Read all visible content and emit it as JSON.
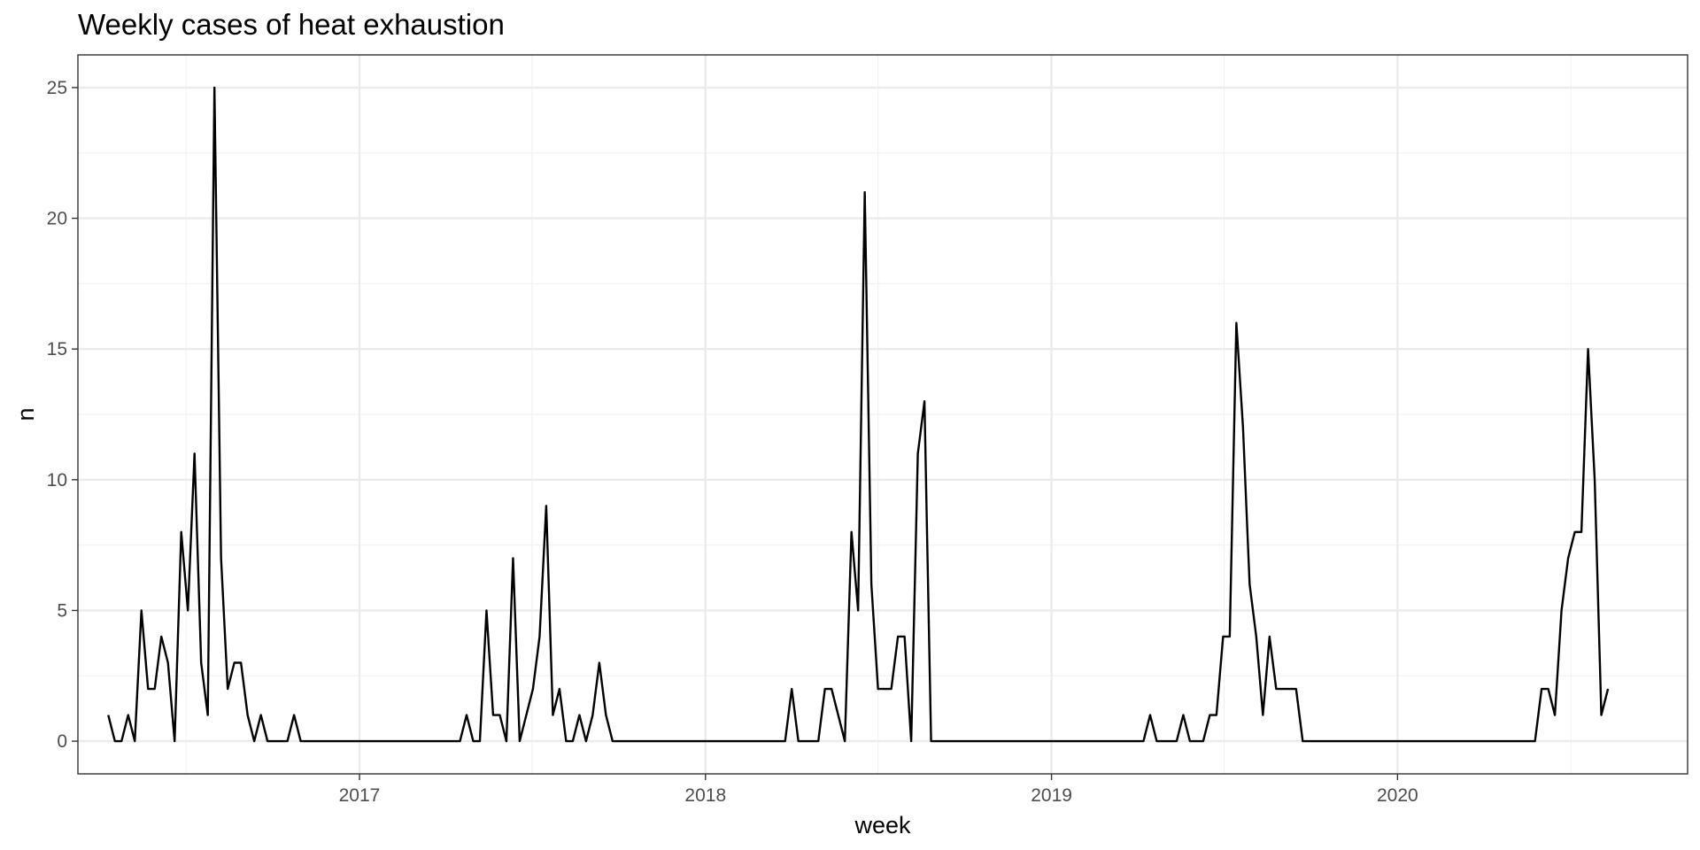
{
  "chart_data": {
    "type": "line",
    "title": "Weekly cases of heat exhaustion",
    "xlabel": "week",
    "ylabel": "n",
    "x_type": "date",
    "xlim": [
      "2016-03-10",
      "2020-11-02"
    ],
    "ylim": [
      -1.25,
      26.25
    ],
    "x_ticks": [
      "2017-01-01",
      "2018-01-01",
      "2019-01-01",
      "2020-01-01"
    ],
    "x_tick_labels": [
      "2017",
      "2018",
      "2019",
      "2020"
    ],
    "y_ticks": [
      0,
      5,
      10,
      15,
      20,
      25
    ],
    "y_tick_labels": [
      "0",
      "5",
      "10",
      "15",
      "20",
      "25"
    ],
    "grid": true,
    "legend": "none",
    "line_color": "#000000",
    "series": [
      {
        "points": [
          [
            "2016-04-11",
            1
          ],
          [
            "2016-04-18",
            0
          ],
          [
            "2016-04-25",
            0
          ],
          [
            "2016-05-02",
            1
          ],
          [
            "2016-05-09",
            0
          ],
          [
            "2016-05-16",
            5
          ],
          [
            "2016-05-23",
            2
          ],
          [
            "2016-05-30",
            2
          ],
          [
            "2016-06-06",
            4
          ],
          [
            "2016-06-13",
            3
          ],
          [
            "2016-06-20",
            0
          ],
          [
            "2016-06-27",
            8
          ],
          [
            "2016-07-04",
            5
          ],
          [
            "2016-07-11",
            11
          ],
          [
            "2016-07-18",
            3
          ],
          [
            "2016-07-25",
            1
          ],
          [
            "2016-08-01",
            25
          ],
          [
            "2016-08-08",
            7
          ],
          [
            "2016-08-15",
            2
          ],
          [
            "2016-08-22",
            3
          ],
          [
            "2016-08-29",
            3
          ],
          [
            "2016-09-05",
            1
          ],
          [
            "2016-09-12",
            0
          ],
          [
            "2016-09-19",
            1
          ],
          [
            "2016-09-26",
            0
          ],
          [
            "2016-10-03",
            0
          ],
          [
            "2016-10-10",
            0
          ],
          [
            "2016-10-17",
            0
          ],
          [
            "2016-10-24",
            1
          ],
          [
            "2016-10-31",
            0
          ],
          [
            "2017-04-17",
            0
          ],
          [
            "2017-04-24",
            1
          ],
          [
            "2017-05-01",
            0
          ],
          [
            "2017-05-08",
            0
          ],
          [
            "2017-05-15",
            5
          ],
          [
            "2017-05-22",
            1
          ],
          [
            "2017-05-29",
            1
          ],
          [
            "2017-06-05",
            0
          ],
          [
            "2017-06-12",
            7
          ],
          [
            "2017-06-19",
            0
          ],
          [
            "2017-06-26",
            1
          ],
          [
            "2017-07-03",
            2
          ],
          [
            "2017-07-10",
            4
          ],
          [
            "2017-07-17",
            9
          ],
          [
            "2017-07-24",
            1
          ],
          [
            "2017-07-31",
            2
          ],
          [
            "2017-08-07",
            0
          ],
          [
            "2017-08-14",
            0
          ],
          [
            "2017-08-21",
            1
          ],
          [
            "2017-08-28",
            0
          ],
          [
            "2017-09-04",
            1
          ],
          [
            "2017-09-11",
            3
          ],
          [
            "2017-09-18",
            1
          ],
          [
            "2017-09-25",
            0
          ],
          [
            "2018-03-26",
            0
          ],
          [
            "2018-04-02",
            2
          ],
          [
            "2018-04-09",
            0
          ],
          [
            "2018-04-16",
            0
          ],
          [
            "2018-04-23",
            0
          ],
          [
            "2018-04-30",
            0
          ],
          [
            "2018-05-07",
            2
          ],
          [
            "2018-05-14",
            2
          ],
          [
            "2018-05-21",
            1
          ],
          [
            "2018-05-28",
            0
          ],
          [
            "2018-06-04",
            8
          ],
          [
            "2018-06-11",
            5
          ],
          [
            "2018-06-18",
            21
          ],
          [
            "2018-06-25",
            6
          ],
          [
            "2018-07-02",
            2
          ],
          [
            "2018-07-09",
            2
          ],
          [
            "2018-07-16",
            2
          ],
          [
            "2018-07-23",
            4
          ],
          [
            "2018-07-30",
            4
          ],
          [
            "2018-08-06",
            0
          ],
          [
            "2018-08-13",
            11
          ],
          [
            "2018-08-20",
            13
          ],
          [
            "2018-08-27",
            0
          ],
          [
            "2019-04-08",
            0
          ],
          [
            "2019-04-15",
            1
          ],
          [
            "2019-04-22",
            0
          ],
          [
            "2019-04-29",
            0
          ],
          [
            "2019-05-06",
            0
          ],
          [
            "2019-05-13",
            0
          ],
          [
            "2019-05-20",
            1
          ],
          [
            "2019-05-27",
            0
          ],
          [
            "2019-06-03",
            0
          ],
          [
            "2019-06-10",
            0
          ],
          [
            "2019-06-17",
            1
          ],
          [
            "2019-06-24",
            1
          ],
          [
            "2019-07-01",
            4
          ],
          [
            "2019-07-08",
            4
          ],
          [
            "2019-07-15",
            16
          ],
          [
            "2019-07-22",
            12
          ],
          [
            "2019-07-29",
            6
          ],
          [
            "2019-08-05",
            4
          ],
          [
            "2019-08-12",
            1
          ],
          [
            "2019-08-19",
            4
          ],
          [
            "2019-08-26",
            2
          ],
          [
            "2019-09-02",
            2
          ],
          [
            "2019-09-09",
            2
          ],
          [
            "2019-09-16",
            2
          ],
          [
            "2019-09-23",
            0
          ],
          [
            "2020-05-25",
            0
          ],
          [
            "2020-06-01",
            2
          ],
          [
            "2020-06-08",
            2
          ],
          [
            "2020-06-15",
            1
          ],
          [
            "2020-06-22",
            5
          ],
          [
            "2020-06-29",
            7
          ],
          [
            "2020-07-06",
            8
          ],
          [
            "2020-07-13",
            8
          ],
          [
            "2020-07-20",
            15
          ],
          [
            "2020-07-27",
            10
          ],
          [
            "2020-08-03",
            1
          ],
          [
            "2020-08-10",
            2
          ]
        ]
      }
    ]
  }
}
